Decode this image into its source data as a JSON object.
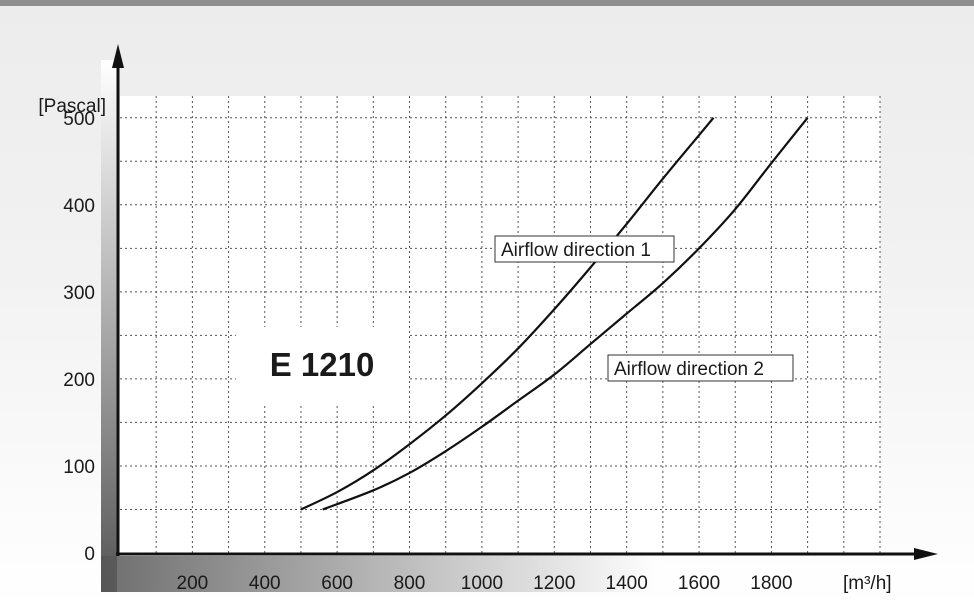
{
  "chart_data": {
    "type": "line",
    "title": "E 1210",
    "xlabel": "[m³/h]",
    "ylabel": "[Pascal]",
    "xlim": [
      0,
      2100
    ],
    "ylim": [
      0,
      525
    ],
    "x_ticks": [
      200,
      400,
      600,
      800,
      1000,
      1200,
      1400,
      1600,
      1800
    ],
    "y_ticks": [
      0,
      100,
      200,
      300,
      400,
      500
    ],
    "grid": true,
    "series": [
      {
        "name": "Airflow direction 1",
        "x": [
          500,
          600,
          700,
          800,
          900,
          1000,
          1100,
          1200,
          1300,
          1400,
          1500,
          1600,
          1640
        ],
        "y": [
          50,
          70,
          95,
          125,
          158,
          195,
          235,
          280,
          328,
          378,
          430,
          480,
          500
        ]
      },
      {
        "name": "Airflow direction 2",
        "x": [
          560,
          700,
          800,
          900,
          1000,
          1100,
          1200,
          1300,
          1400,
          1500,
          1600,
          1700,
          1800,
          1900
        ],
        "y": [
          50,
          72,
          92,
          117,
          145,
          175,
          205,
          240,
          275,
          310,
          350,
          395,
          448,
          500
        ]
      }
    ]
  }
}
